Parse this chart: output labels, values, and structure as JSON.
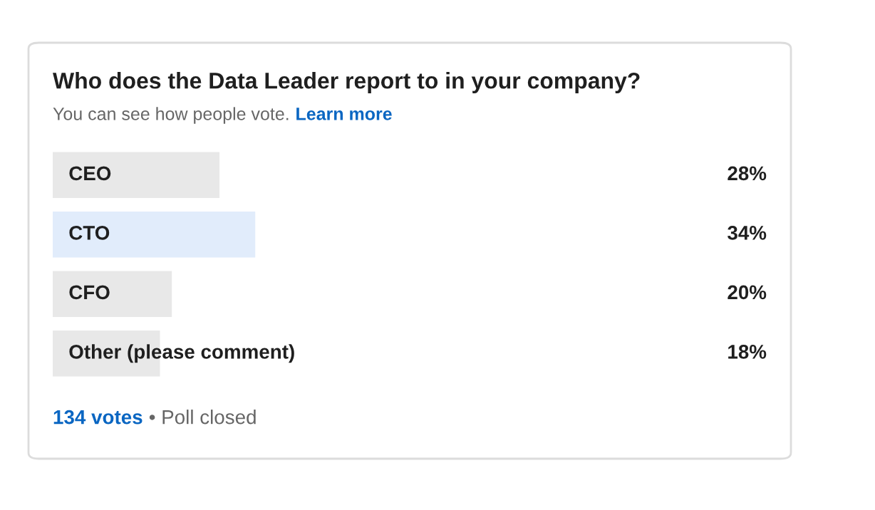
{
  "chart_data": {
    "type": "bar",
    "orientation": "horizontal",
    "title": "Who does the Data Leader report to in your company?",
    "subtitle": "You can see how people vote.",
    "categories": [
      "CEO",
      "CTO",
      "CFO",
      "Other (please comment)"
    ],
    "values": [
      28,
      34,
      20,
      18
    ],
    "colors": [
      "#e8e8e8",
      "#e1ecfb",
      "#e8e8e8",
      "#e8e8e8"
    ],
    "value_labels": [
      "28%",
      "34%",
      "20%",
      "18%"
    ],
    "annotations": [
      "Learn more",
      "134 votes",
      "• Poll closed"
    ],
    "legend": false
  }
}
